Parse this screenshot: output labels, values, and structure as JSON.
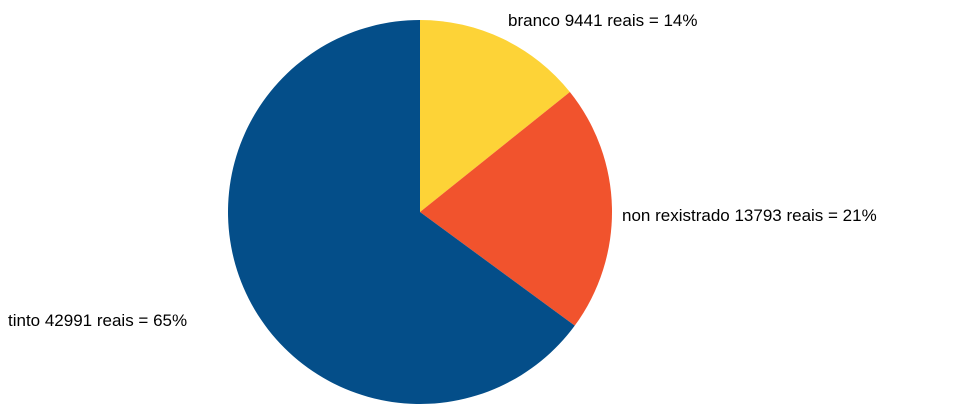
{
  "chart_data": {
    "type": "pie",
    "title": "",
    "slices": [
      {
        "name": "branco",
        "value": 9441,
        "percent": 14,
        "label": "branco 9441 reais =  14%",
        "color": "#FDD337"
      },
      {
        "name": "non rexistrado",
        "value": 13793,
        "percent": 21,
        "label": "non rexistrado 13793 reais =  21%",
        "color": "#F1532D"
      },
      {
        "name": "tinto",
        "value": 42991,
        "percent": 65,
        "label": "tinto 42991 reais =  65%",
        "color": "#044E89"
      }
    ],
    "start_angle": "top",
    "direction": "clockwise",
    "legend": "none"
  }
}
